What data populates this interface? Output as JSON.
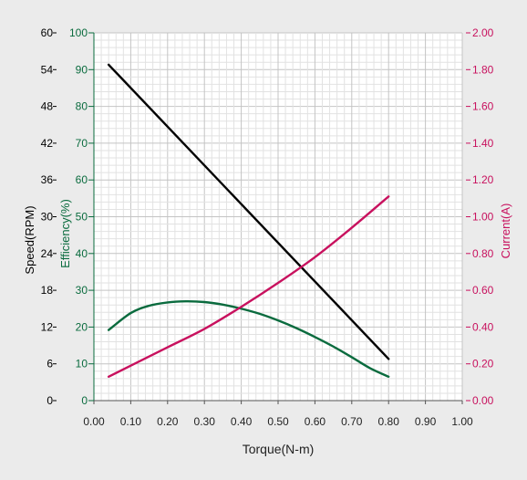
{
  "chart_data": {
    "type": "line",
    "xlabel": "Torque(N-m)",
    "xlim": [
      0,
      1
    ],
    "x_ticks": [
      "0.00",
      "0.10",
      "0.20",
      "0.30",
      "0.40",
      "0.50",
      "0.60",
      "0.70",
      "0.80",
      "0.90",
      "1.00"
    ],
    "axes": {
      "speed": {
        "label": "Speed(RPM)",
        "color": "#000000",
        "lim": [
          0,
          60
        ],
        "ticks": [
          "0",
          "6",
          "12",
          "18",
          "24",
          "30",
          "36",
          "42",
          "48",
          "54",
          "60"
        ]
      },
      "efficiency": {
        "label": "Efficiency(%)",
        "color": "#0a6b3e",
        "lim": [
          0,
          100
        ],
        "ticks": [
          "0",
          "10",
          "20",
          "30",
          "40",
          "50",
          "60",
          "70",
          "80",
          "90",
          "100"
        ]
      },
      "current": {
        "label": "Current(A)",
        "color": "#c8115e",
        "lim": [
          0,
          2
        ],
        "ticks": [
          "0.00",
          "0.20",
          "0.40",
          "0.60",
          "0.80",
          "1.00",
          "1.20",
          "1.40",
          "1.60",
          "1.80",
          "2.00"
        ]
      }
    },
    "grid": true,
    "series": [
      {
        "axis": "speed",
        "color": "#000000",
        "x": [
          0.04,
          0.8
        ],
        "y": [
          54.8,
          6.8
        ]
      },
      {
        "axis": "efficiency",
        "color": "#0a6b3e",
        "x": [
          0.04,
          0.1,
          0.15,
          0.2,
          0.25,
          0.3,
          0.35,
          0.4,
          0.45,
          0.5,
          0.55,
          0.6,
          0.65,
          0.7,
          0.75,
          0.8
        ],
        "y": [
          19.2,
          23.8,
          25.8,
          26.7,
          27.0,
          26.8,
          26.1,
          25.0,
          23.6,
          21.8,
          19.7,
          17.3,
          14.7,
          11.8,
          8.8,
          6.5
        ]
      },
      {
        "axis": "current",
        "color": "#c8115e",
        "x": [
          0.04,
          0.1,
          0.2,
          0.3,
          0.4,
          0.5,
          0.6,
          0.7,
          0.8
        ],
        "y": [
          0.13,
          0.19,
          0.29,
          0.39,
          0.51,
          0.64,
          0.78,
          0.94,
          1.11
        ]
      }
    ]
  }
}
